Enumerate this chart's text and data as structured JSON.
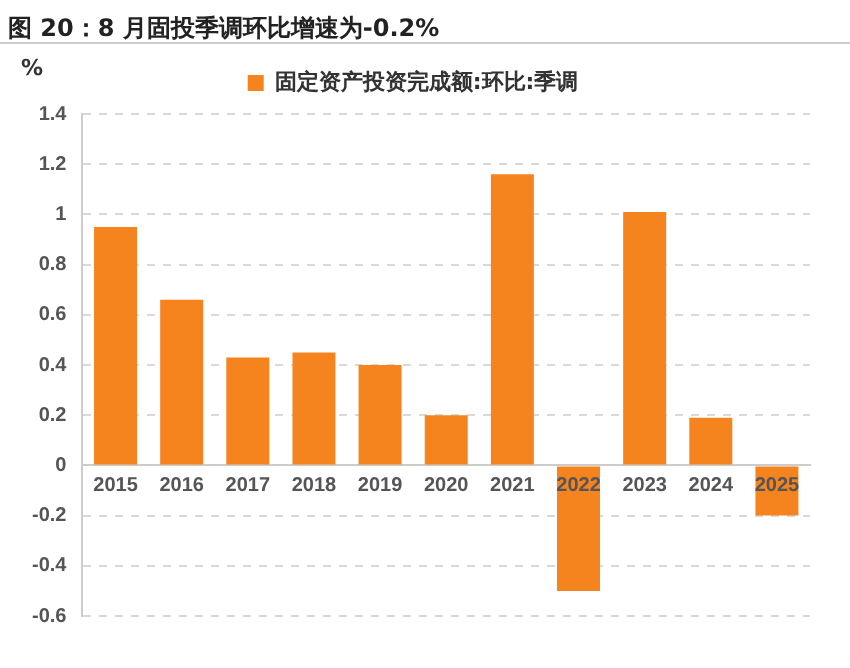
{
  "chart_data": {
    "type": "bar",
    "title": "图 20：8 月固投季调环比增速为-0.2%",
    "ylabel": "%",
    "categories": [
      "2015",
      "2016",
      "2017",
      "2018",
      "2019",
      "2020",
      "2021",
      "2022",
      "2023",
      "2024",
      "2025"
    ],
    "series": [
      {
        "name": "固定资产投资完成额:环比:季调",
        "color": "#f5841f",
        "values": [
          0.95,
          0.66,
          0.43,
          0.45,
          0.4,
          0.2,
          1.16,
          -0.5,
          1.01,
          0.19,
          -0.2
        ]
      }
    ],
    "ylim": [
      -0.6,
      1.4
    ],
    "yticks": [
      -0.6,
      -0.4,
      -0.2,
      0,
      0.2,
      0.4,
      0.6,
      0.8,
      1,
      1.2,
      1.4
    ],
    "grid": "y",
    "legend": "top"
  }
}
